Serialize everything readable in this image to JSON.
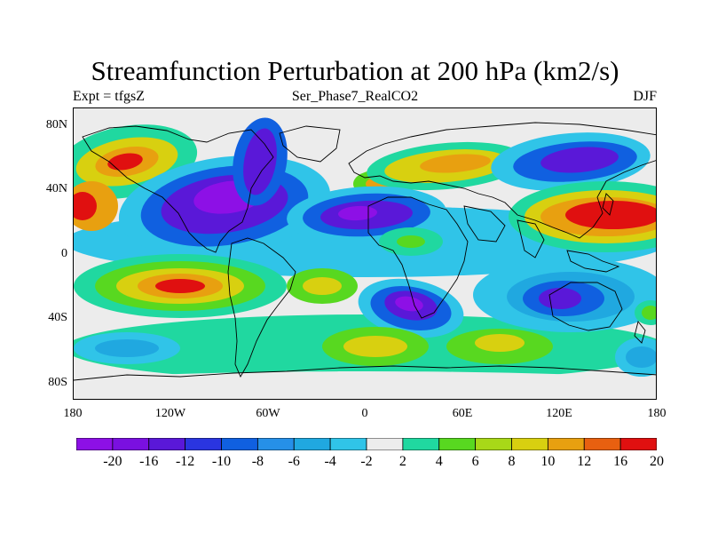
{
  "title": "Streamfunction Perturbation at 200 hPa (km2/s)",
  "subtitle_left": "Expt = tfgsZ",
  "subtitle_center": "Ser_Phase7_RealCO2",
  "subtitle_right": "DJF",
  "lat_labels": [
    "80N",
    "40N",
    "0",
    "40S",
    "80S"
  ],
  "lon_labels": [
    "180",
    "120W",
    "60W",
    "0",
    "60E",
    "120E",
    "180"
  ],
  "colorbar": {
    "labels": [
      "-20",
      "-16",
      "-12",
      "-10",
      "-8",
      "-6",
      "-4",
      "-2",
      "2",
      "4",
      "6",
      "8",
      "10",
      "12",
      "16",
      "20"
    ],
    "colors": [
      "#8d10e6",
      "#7a10e0",
      "#5a18d8",
      "#2a35e0",
      "#1060e0",
      "#2690e8",
      "#20a8e0",
      "#30c4e8",
      "#ececec",
      "#20d8a0",
      "#58d820",
      "#a8d818",
      "#d8d010",
      "#e8a010",
      "#e86010",
      "#e01010"
    ]
  },
  "map_colors": {
    "neg_weak": "#30c4e8",
    "neg_mid": "#20a8e0",
    "neg_strong": "#1060e0",
    "neg_vstrong": "#5a18d8",
    "neg_max": "#8d10e6",
    "pos_weak": "#20d8a0",
    "pos_mid": "#58d820",
    "pos_strong": "#d8d010",
    "pos_vstrong": "#e8a010",
    "pos_max": "#e01010",
    "background": "#ececec"
  }
}
